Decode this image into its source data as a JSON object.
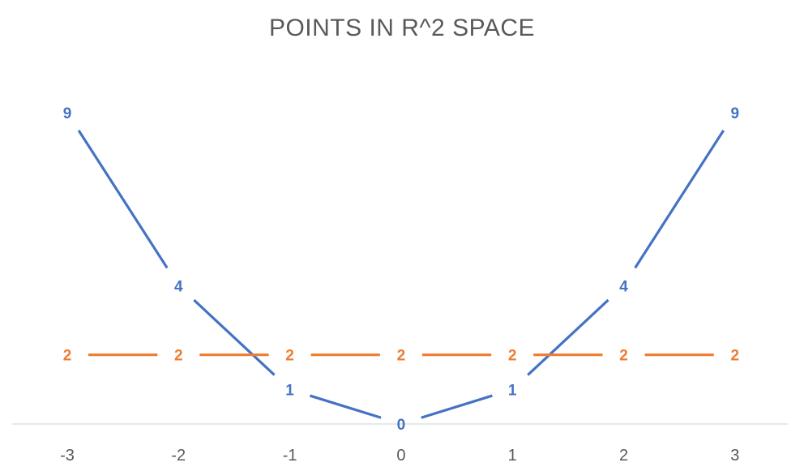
{
  "chart_data": {
    "type": "line",
    "title": "POINTS IN R^2 SPACE",
    "xlabel": "",
    "ylabel": "",
    "categories": [
      "-3",
      "-2",
      "-1",
      "0",
      "1",
      "2",
      "3"
    ],
    "ylim": [
      0,
      9
    ],
    "grid": false,
    "legend": "none",
    "series": [
      {
        "values": [
          9,
          4,
          1,
          0,
          1,
          4,
          9
        ],
        "color": "#4472C4",
        "data_labels": true
      },
      {
        "values": [
          2,
          2,
          2,
          2,
          2,
          2,
          2
        ],
        "color": "#ED7D31",
        "data_labels": true
      }
    ]
  }
}
